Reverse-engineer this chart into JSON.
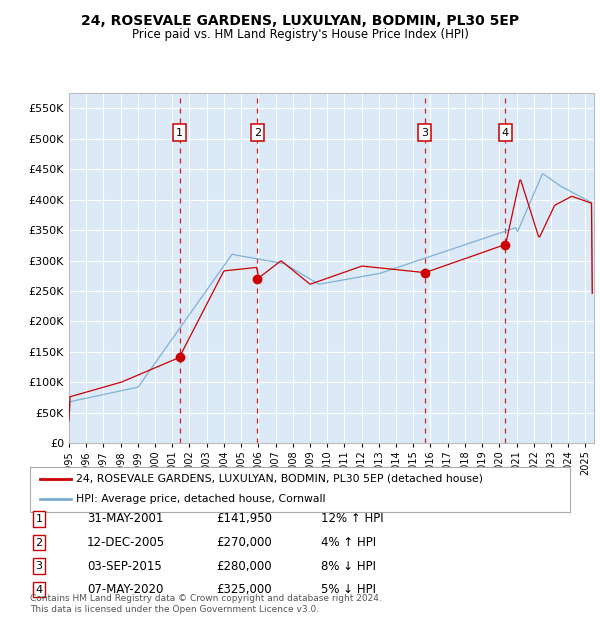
{
  "title1": "24, ROSEVALE GARDENS, LUXULYAN, BODMIN, PL30 5EP",
  "title2": "Price paid vs. HM Land Registry's House Price Index (HPI)",
  "ylim": [
    0,
    575000
  ],
  "yticks": [
    0,
    50000,
    100000,
    150000,
    200000,
    250000,
    300000,
    350000,
    400000,
    450000,
    500000,
    550000
  ],
  "xlim_start": 1995.0,
  "xlim_end": 2025.5,
  "plot_bg_color": "#dce9f7",
  "grid_color": "#ffffff",
  "legend_label_red": "24, ROSEVALE GARDENS, LUXULYAN, BODMIN, PL30 5EP (detached house)",
  "legend_label_blue": "HPI: Average price, detached house, Cornwall",
  "footer": "Contains HM Land Registry data © Crown copyright and database right 2024.\nThis data is licensed under the Open Government Licence v3.0.",
  "transactions": [
    {
      "num": 1,
      "date": "31-MAY-2001",
      "price": 141950,
      "price_str": "£141,950",
      "x": 2001.42,
      "pct": "12%",
      "dir": "↑"
    },
    {
      "num": 2,
      "date": "12-DEC-2005",
      "price": 270000,
      "price_str": "£270,000",
      "x": 2005.95,
      "pct": "4%",
      "dir": "↑"
    },
    {
      "num": 3,
      "date": "03-SEP-2015",
      "price": 280000,
      "price_str": "£280,000",
      "x": 2015.67,
      "pct": "8%",
      "dir": "↓"
    },
    {
      "num": 4,
      "date": "07-MAY-2020",
      "price": 325000,
      "price_str": "£325,000",
      "x": 2020.35,
      "pct": "5%",
      "dir": "↓"
    }
  ],
  "red_line_color": "#cc0000",
  "blue_line_color": "#7aaed4",
  "marker_color": "#cc0000",
  "dashed_line_color": "#cc0000",
  "box_color": "#cc0000"
}
